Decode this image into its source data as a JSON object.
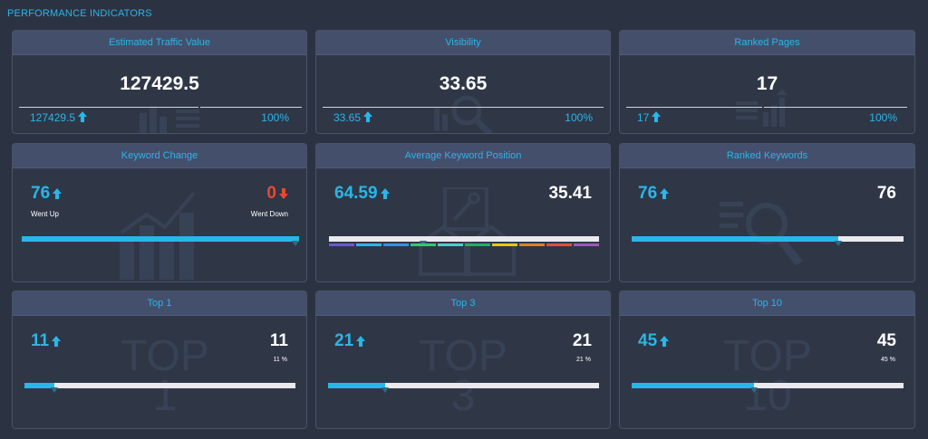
{
  "section_title": "PERFORMANCE INDICATORS",
  "colors": {
    "accent": "#29b6e8",
    "negative": "#e8482f",
    "panel_header": "#444f6c"
  },
  "cards": {
    "traffic": {
      "title": "Estimated Traffic Value",
      "value": "127429.5",
      "sub_value": "127429.5",
      "sub_pct": "100%",
      "icon": "bar-chart-icon"
    },
    "visibility": {
      "title": "Visibility",
      "value": "33.65",
      "sub_value": "33.65",
      "sub_pct": "100%",
      "icon": "magnifier-chart-icon"
    },
    "ranked_pages": {
      "title": "Ranked Pages",
      "value": "17",
      "sub_value": "17",
      "sub_pct": "100%",
      "icon": "list-chart-icon"
    },
    "keyword_change": {
      "title": "Keyword Change",
      "up_value": "76",
      "up_label": "Went Up",
      "down_value": "0",
      "down_label": "Went Down",
      "up_share": 1.0
    },
    "avg_position": {
      "title": "Average Keyword Position",
      "left_value": "64.59",
      "right_value": "35.41",
      "marker_fraction": 0.35,
      "segment_colors": [
        "#6a5acd",
        "#29b6e8",
        "#3d8fe0",
        "#2ecc71",
        "#48d1cc",
        "#27ae60",
        "#f1c40f",
        "#e67e22",
        "#e74c3c",
        "#9b59b6"
      ]
    },
    "ranked_keywords": {
      "title": "Ranked Keywords",
      "left_value": "76",
      "right_value": "76",
      "fill_fraction": 0.76
    },
    "top1": {
      "title": "Top 1",
      "left_value": "11",
      "right_value": "11",
      "pct_label": "11 %",
      "fill_fraction": 0.11,
      "bg_text": "TOP",
      "bg_num": "1"
    },
    "top3": {
      "title": "Top 3",
      "left_value": "21",
      "right_value": "21",
      "pct_label": "21 %",
      "fill_fraction": 0.21,
      "bg_text": "TOP",
      "bg_num": "3"
    },
    "top10": {
      "title": "Top 10",
      "left_value": "45",
      "right_value": "45",
      "pct_label": "45 %",
      "fill_fraction": 0.45,
      "bg_text": "TOP",
      "bg_num": "10"
    }
  }
}
